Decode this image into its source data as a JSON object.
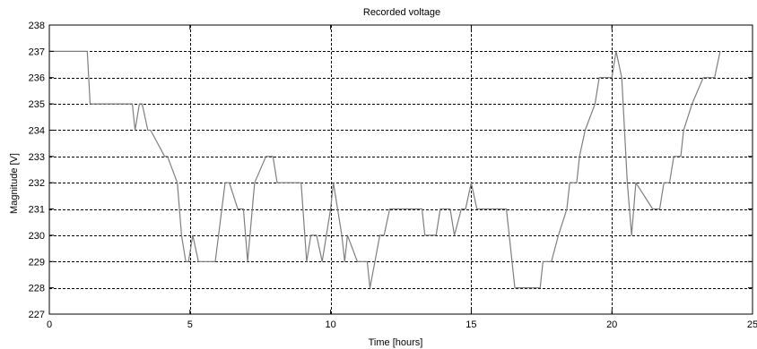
{
  "chart_data": {
    "type": "line",
    "title": "Recorded voltage",
    "xlabel": "Time [hours]",
    "ylabel": "Magnitude [V]",
    "xlim": [
      0,
      25
    ],
    "ylim": [
      227,
      238
    ],
    "xticks": [
      0,
      5,
      10,
      15,
      20,
      25
    ],
    "yticks": [
      227,
      228,
      229,
      230,
      231,
      232,
      233,
      234,
      235,
      236,
      237,
      238
    ],
    "grid": true,
    "colors": {
      "line": "#7f7f7f",
      "grid": "#000000",
      "axes": "#000000"
    },
    "series": [
      {
        "x": [
          0,
          1.35,
          1.45,
          2.95,
          3.05,
          3.2,
          3.3,
          3.5,
          3.6,
          4.1,
          4.2,
          4.55,
          4.7,
          4.85,
          4.95,
          5.1,
          5.3,
          5.5,
          5.9,
          6.25,
          6.4,
          6.7,
          6.9,
          7.05,
          7.3,
          7.7,
          7.95,
          8.1,
          8.95,
          9.15,
          9.3,
          9.5,
          9.7,
          10.0,
          10.1,
          10.4,
          10.5,
          10.6,
          10.95,
          11.1,
          11.3,
          11.4,
          11.75,
          11.9,
          12.1,
          12.4,
          13.25,
          13.35,
          13.75,
          13.9,
          14.25,
          14.4,
          14.65,
          14.8,
          15.0,
          15.2,
          15.4,
          16.25,
          16.45,
          16.55,
          17.3,
          17.45,
          17.55,
          17.85,
          18.1,
          18.4,
          18.5,
          18.75,
          18.85,
          19.05,
          19.4,
          19.55,
          19.7,
          20.0,
          20.15,
          20.35,
          20.55,
          20.7,
          20.85,
          21.45,
          21.7,
          21.85,
          22.05,
          22.2,
          22.45,
          22.55,
          22.85,
          23.25,
          23.5,
          23.65,
          23.85
        ],
        "y": [
          237,
          237,
          235,
          235,
          234,
          235,
          235,
          234,
          234,
          233,
          233,
          232,
          230,
          229,
          229,
          230,
          229,
          229,
          229,
          232,
          232,
          231,
          231,
          229,
          232,
          233,
          233,
          232,
          232,
          229,
          230,
          230,
          229,
          231,
          232,
          230,
          229,
          230,
          229,
          229,
          229,
          228,
          230,
          230,
          231,
          231,
          231,
          230,
          230,
          231,
          231,
          230,
          231,
          231,
          232,
          231,
          231,
          231,
          229,
          228,
          228,
          228,
          229,
          229,
          230,
          231,
          232,
          232,
          233,
          234,
          235,
          236,
          236,
          236,
          237,
          236,
          232,
          230,
          232,
          231,
          231,
          232,
          232,
          233,
          233,
          234,
          235,
          236,
          236,
          236,
          237
        ]
      }
    ]
  }
}
